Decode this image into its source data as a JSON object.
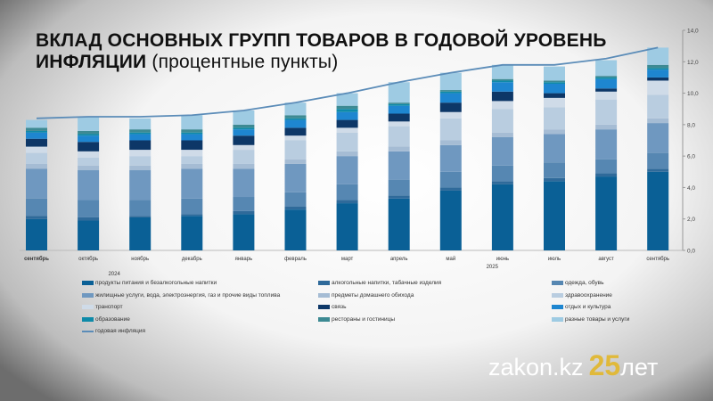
{
  "title": {
    "main": "ВКЛАД ОСНОВНЫХ ГРУПП ТОВАРОВ В ГОДОВОЙ УРОВЕНЬ",
    "main2": "ИНФЛЯЦИИ",
    "sub": "(процентные пункты)"
  },
  "chart_data": {
    "type": "bar",
    "stacked": true,
    "categories": [
      "сентябрь",
      "октябрь",
      "ноябрь",
      "декабрь",
      "январь",
      "февраль",
      "март",
      "апрель",
      "май",
      "июнь",
      "июль",
      "август",
      "сентябрь"
    ],
    "year_labels": [
      "2024",
      "2025"
    ],
    "ylim": [
      0,
      14
    ],
    "yticks": [
      "0,0",
      "2,0",
      "4,0",
      "6,0",
      "8,0",
      "10,0",
      "12,0",
      "14,0"
    ],
    "series": [
      {
        "name": "продукты питания и безалкогольные напитки",
        "color": "#0a6096",
        "values": [
          2.0,
          1.9,
          2.1,
          2.2,
          2.3,
          2.6,
          3.0,
          3.3,
          3.8,
          4.2,
          4.4,
          4.7,
          5.0
        ]
      },
      {
        "name": "алкогольные напитки, табачные изделия",
        "color": "#2f6a9a",
        "values": [
          0.2,
          0.2,
          0.1,
          0.1,
          0.2,
          0.2,
          0.2,
          0.2,
          0.2,
          0.2,
          0.2,
          0.2,
          0.2
        ]
      },
      {
        "name": "одежда, обувь",
        "color": "#5687b2",
        "values": [
          1.1,
          1.1,
          1.0,
          1.0,
          0.9,
          0.9,
          1.0,
          1.0,
          1.0,
          1.0,
          1.0,
          0.9,
          1.0
        ]
      },
      {
        "name": "жилищные услуги, вода, электроэнергия, газ и прочие виды топлива",
        "color": "#6f98c0",
        "values": [
          1.9,
          1.9,
          1.9,
          1.9,
          1.8,
          1.8,
          1.8,
          1.8,
          1.7,
          1.8,
          1.8,
          1.9,
          1.9
        ]
      },
      {
        "name": "предметы домашнего обихода",
        "color": "#a5bcd4",
        "values": [
          0.3,
          0.3,
          0.3,
          0.3,
          0.3,
          0.3,
          0.3,
          0.3,
          0.3,
          0.3,
          0.3,
          0.3,
          0.3
        ]
      },
      {
        "name": "здравоохранение",
        "color": "#b9cde0",
        "values": [
          0.7,
          0.5,
          0.6,
          0.5,
          0.9,
          1.2,
          1.2,
          1.3,
          1.4,
          1.5,
          1.4,
          1.6,
          1.5
        ]
      },
      {
        "name": "транспорт",
        "color": "#cfdbe8",
        "values": [
          0.4,
          0.4,
          0.4,
          0.4,
          0.3,
          0.3,
          0.3,
          0.3,
          0.4,
          0.5,
          0.6,
          0.5,
          0.9
        ]
      },
      {
        "name": "связь",
        "color": "#0d3767",
        "values": [
          0.5,
          0.6,
          0.6,
          0.6,
          0.6,
          0.5,
          0.5,
          0.5,
          0.6,
          0.6,
          0.3,
          0.2,
          0.2
        ]
      },
      {
        "name": "отдых и культура",
        "color": "#1e86d0",
        "values": [
          0.4,
          0.4,
          0.4,
          0.4,
          0.4,
          0.5,
          0.5,
          0.5,
          0.6,
          0.6,
          0.6,
          0.6,
          0.5
        ]
      },
      {
        "name": "образование",
        "color": "#0e8aa8",
        "values": [
          0.1,
          0.1,
          0.1,
          0.1,
          0.1,
          0.1,
          0.2,
          0.1,
          0.1,
          0.1,
          0.1,
          0.1,
          0.1
        ]
      },
      {
        "name": "рестораны и гостиницы",
        "color": "#3d8a93",
        "values": [
          0.2,
          0.2,
          0.2,
          0.2,
          0.2,
          0.2,
          0.2,
          0.1,
          0.1,
          0.1,
          0.1,
          0.1,
          0.2
        ]
      },
      {
        "name": "разные товары и услуги",
        "color": "#9ecbe3",
        "values": [
          0.5,
          0.9,
          0.7,
          0.9,
          0.9,
          0.8,
          0.8,
          1.3,
          1.1,
          0.9,
          0.9,
          1.0,
          1.1
        ]
      }
    ],
    "line": {
      "name": "годовая инфляция",
      "color": "#5b8cb8",
      "values": [
        8.4,
        8.5,
        8.5,
        8.6,
        8.9,
        9.4,
        10.0,
        10.7,
        11.3,
        11.8,
        11.8,
        12.2,
        12.9
      ]
    },
    "legend": "bottom"
  },
  "logo": {
    "text": "zakon.kz",
    "num": "25",
    "suffix": "лет"
  }
}
